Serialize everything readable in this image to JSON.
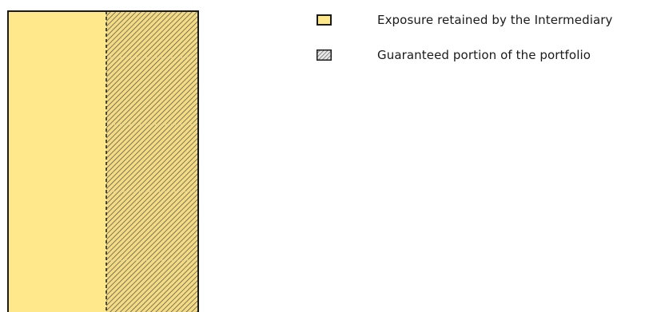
{
  "colors": {
    "retained_fill": "#FFE88C",
    "guaranteed_fill": "#F5DC82",
    "hatch_line": "#555555",
    "outline": "#1a1a1a"
  },
  "legend": {
    "items": [
      {
        "label": "Exposure retained by the Intermediary",
        "swatch": "plain",
        "color": "#FFE88C"
      },
      {
        "label": "Guaranteed portion of the portfolio",
        "swatch": "hatched",
        "color": "#F5DC82"
      }
    ]
  }
}
